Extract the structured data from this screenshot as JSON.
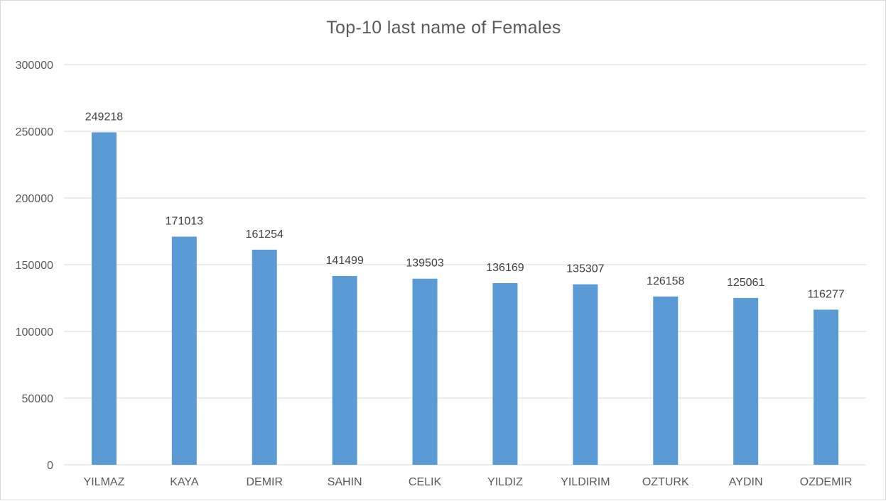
{
  "chart_data": {
    "type": "bar",
    "title": "Top-10 last name of Females",
    "xlabel": "",
    "ylabel": "",
    "categories": [
      "YILMAZ",
      "KAYA",
      "DEMIR",
      "SAHIN",
      "CELIK",
      "YILDIZ",
      "YILDIRIM",
      "OZTURK",
      "AYDIN",
      "OZDEMIR"
    ],
    "values": [
      249218,
      171013,
      161254,
      141499,
      139503,
      136169,
      135307,
      126158,
      125061,
      116277
    ],
    "data_labels": [
      "249218",
      "171013",
      "161254",
      "141499",
      "139503",
      "136169",
      "135307",
      "126158",
      "125061",
      "116277"
    ],
    "ylim": [
      0,
      300000
    ],
    "yticks": [
      0,
      50000,
      100000,
      150000,
      200000,
      250000,
      300000
    ],
    "ytick_labels": [
      "0",
      "50000",
      "100000",
      "150000",
      "200000",
      "250000",
      "300000"
    ],
    "grid": true,
    "legend": "none",
    "bar_color": "#5b9bd5",
    "grid_color": "#d9d9d9"
  }
}
